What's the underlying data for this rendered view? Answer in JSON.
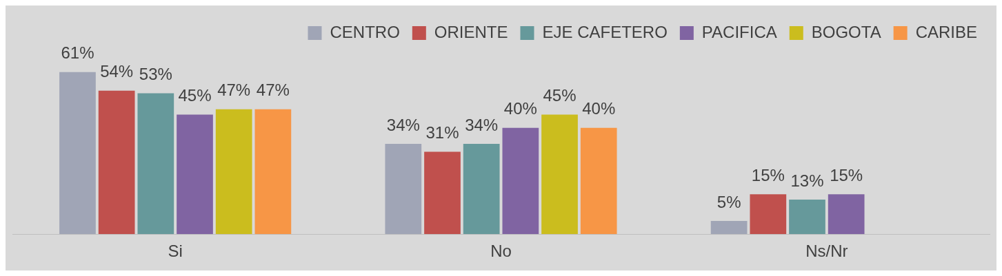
{
  "chart_data": {
    "type": "bar",
    "categories": [
      "Si",
      "No",
      "Ns/Nr"
    ],
    "series": [
      {
        "name": "CENTRO",
        "color": "#a0a5b6",
        "values": [
          61,
          34,
          5
        ],
        "value_labels": [
          "61%",
          "34%",
          "5%"
        ]
      },
      {
        "name": "ORIENTE",
        "color": "#c0504d",
        "values": [
          54,
          31,
          15
        ],
        "value_labels": [
          "54%",
          "31%",
          "15%"
        ]
      },
      {
        "name": "EJE CAFETERO",
        "color": "#66999b",
        "values": [
          53,
          34,
          13
        ],
        "value_labels": [
          "53%",
          "34%",
          "13%"
        ]
      },
      {
        "name": "PACIFICA",
        "color": "#8064a2",
        "values": [
          45,
          40,
          15
        ],
        "value_labels": [
          "45%",
          "40%",
          "15%"
        ]
      },
      {
        "name": "BOGOTA",
        "color": "#cbbd1e",
        "values": [
          47,
          45,
          null
        ],
        "value_labels": [
          "47%",
          "45%",
          null
        ]
      },
      {
        "name": "CARIBE",
        "color": "#f79646",
        "values": [
          47,
          40,
          null
        ],
        "value_labels": [
          "47%",
          "40%",
          null
        ]
      }
    ],
    "legend": "top",
    "grid": false
  }
}
